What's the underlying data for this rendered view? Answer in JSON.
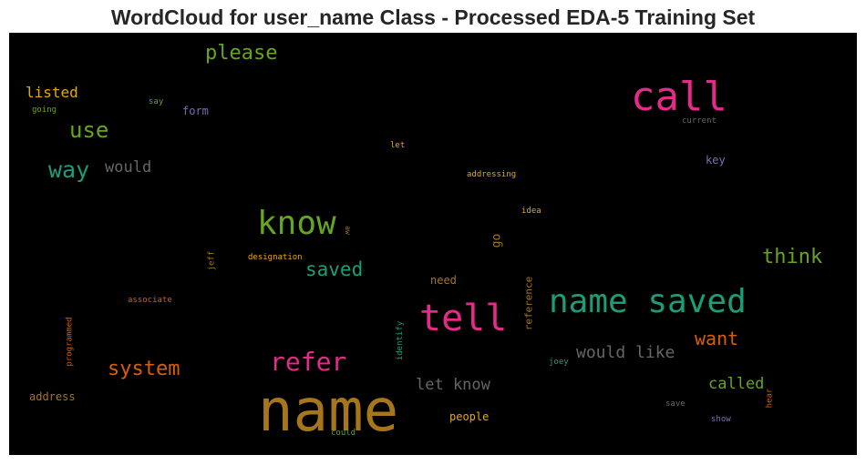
{
  "chart_data": {
    "type": "wordcloud",
    "title": "WordCloud for user_name Class - Processed EDA-5 Training Set",
    "background": "#000000",
    "words": [
      {
        "text": "name",
        "weight": 1.0,
        "color": "#a6761d"
      },
      {
        "text": "call",
        "weight": 0.75,
        "color": "#e7298a"
      },
      {
        "text": "tell",
        "weight": 0.7,
        "color": "#e7298a"
      },
      {
        "text": "name saved",
        "weight": 0.65,
        "color": "#1b9e77"
      },
      {
        "text": "know",
        "weight": 0.62,
        "color": "#66a61e"
      },
      {
        "text": "refer",
        "weight": 0.5,
        "color": "#e7298a"
      },
      {
        "text": "system",
        "weight": 0.42,
        "color": "#d95f02"
      },
      {
        "text": "use",
        "weight": 0.42,
        "color": "#66a61e"
      },
      {
        "text": "way",
        "weight": 0.42,
        "color": "#1b9e77"
      },
      {
        "text": "please",
        "weight": 0.4,
        "color": "#66a61e"
      },
      {
        "text": "think",
        "weight": 0.4,
        "color": "#66a61e"
      },
      {
        "text": "saved",
        "weight": 0.38,
        "color": "#1b9e77"
      },
      {
        "text": "would like",
        "weight": 0.36,
        "color": "#666666"
      },
      {
        "text": "want",
        "weight": 0.36,
        "color": "#d95f02"
      },
      {
        "text": "would",
        "weight": 0.34,
        "color": "#666666"
      },
      {
        "text": "let know",
        "weight": 0.34,
        "color": "#666666"
      },
      {
        "text": "called",
        "weight": 0.32,
        "color": "#66a61e"
      },
      {
        "text": "listed",
        "weight": 0.3,
        "color": "#e6ab02"
      },
      {
        "text": "go",
        "weight": 0.22,
        "color": "#a6761d"
      },
      {
        "text": "reference",
        "weight": 0.2,
        "color": "#a6761d"
      },
      {
        "text": "form",
        "weight": 0.2,
        "color": "#7570b3"
      },
      {
        "text": "key",
        "weight": 0.2,
        "color": "#7570b3"
      },
      {
        "text": "need",
        "weight": 0.2,
        "color": "#a6761d"
      },
      {
        "text": "address",
        "weight": 0.18,
        "color": "#a6761d"
      },
      {
        "text": "people",
        "weight": 0.18,
        "color": "#e6ab02"
      },
      {
        "text": "programmed",
        "weight": 0.14,
        "color": "#d95f02"
      },
      {
        "text": "identify",
        "weight": 0.14,
        "color": "#1b9e77"
      },
      {
        "text": "jeff",
        "weight": 0.14,
        "color": "#a6761d"
      },
      {
        "text": "associate",
        "weight": 0.14,
        "color": "#d95f02"
      },
      {
        "text": "designation",
        "weight": 0.14,
        "color": "#e6ab02"
      },
      {
        "text": "addressing",
        "weight": 0.14,
        "color": "#e6ab02"
      },
      {
        "text": "idea",
        "weight": 0.13,
        "color": "#e6ab02"
      },
      {
        "text": "let",
        "weight": 0.13,
        "color": "#e6ab02"
      },
      {
        "text": "say",
        "weight": 0.13,
        "color": "#66a61e"
      },
      {
        "text": "going",
        "weight": 0.13,
        "color": "#66a61e"
      },
      {
        "text": "current",
        "weight": 0.13,
        "color": "#666666"
      },
      {
        "text": "aw",
        "weight": 0.12,
        "color": "#a6761d"
      },
      {
        "text": "joey",
        "weight": 0.12,
        "color": "#1b9e77"
      },
      {
        "text": "save",
        "weight": 0.12,
        "color": "#666666"
      },
      {
        "text": "show",
        "weight": 0.12,
        "color": "#7570b3"
      },
      {
        "text": "hear",
        "weight": 0.12,
        "color": "#d95f02"
      },
      {
        "text": "could",
        "weight": 0.12,
        "color": "#66a61e"
      }
    ]
  }
}
